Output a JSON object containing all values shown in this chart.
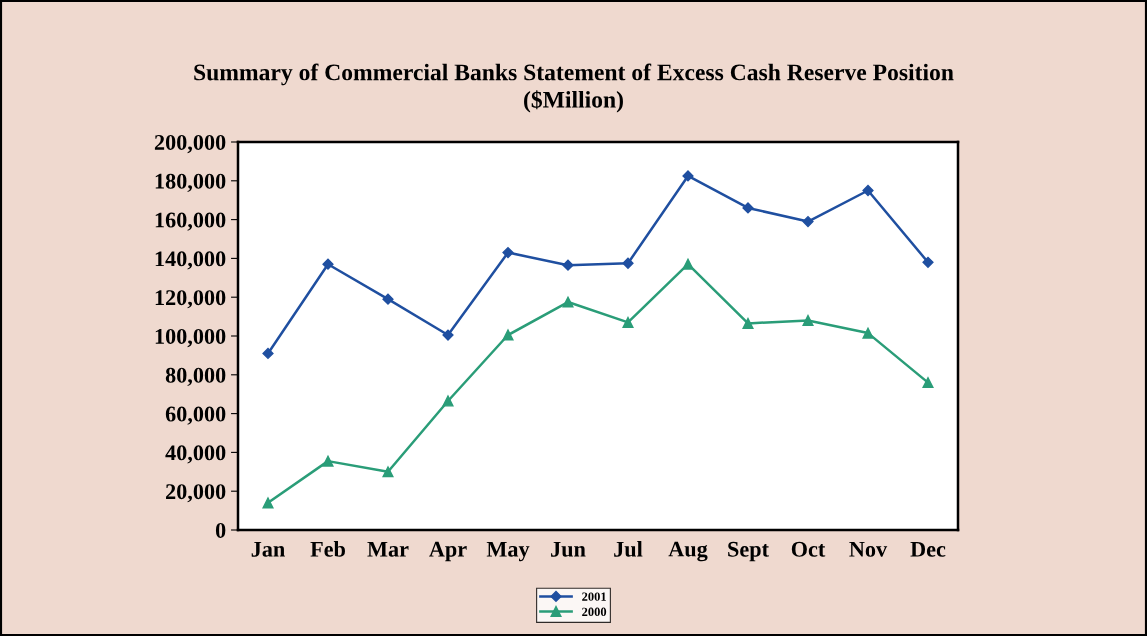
{
  "chart_data": {
    "type": "line",
    "title": "Summary of Commercial Banks Statement of Excess Cash Reserve Position\n($Million)",
    "categories": [
      "Jan",
      "Feb",
      "Mar",
      "Apr",
      "May",
      "Jun",
      "Jul",
      "Aug",
      "Sept",
      "Oct",
      "Nov",
      "Dec"
    ],
    "series": [
      {
        "name": "2001",
        "color": "#1f4fa0",
        "marker": "diamond",
        "values": [
          91000,
          137000,
          119000,
          100500,
          143000,
          136500,
          137500,
          182500,
          166000,
          159000,
          175000,
          138000
        ]
      },
      {
        "name": "2000",
        "color": "#2a9d78",
        "marker": "triangle",
        "values": [
          14000,
          35500,
          30000,
          66500,
          100500,
          117500,
          107000,
          137000,
          106500,
          108000,
          101500,
          76000
        ]
      }
    ],
    "ylim": [
      0,
      200000
    ],
    "yticks": [
      {
        "value": 0,
        "label": "0"
      },
      {
        "value": 20000,
        "label": "20,000"
      },
      {
        "value": 40000,
        "label": "40,000"
      },
      {
        "value": 60000,
        "label": "60,000"
      },
      {
        "value": 80000,
        "label": "80,000"
      },
      {
        "value": 100000,
        "label": "100,000"
      },
      {
        "value": 120000,
        "label": "120,000"
      },
      {
        "value": 140000,
        "label": "140,000"
      },
      {
        "value": 160000,
        "label": "160,000"
      },
      {
        "value": 180000,
        "label": "180,000"
      },
      {
        "value": 200000,
        "label": "200,000"
      }
    ],
    "grid": false,
    "legend": "bottom",
    "line_style": "solid"
  }
}
